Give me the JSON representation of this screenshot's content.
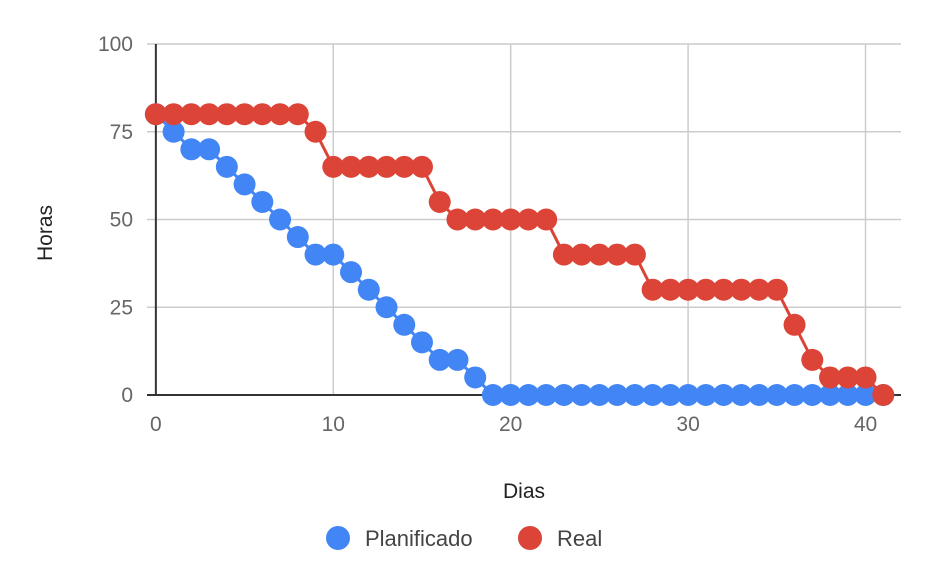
{
  "chart_data": {
    "type": "line",
    "xlabel": "Dias",
    "ylabel": "Horas",
    "xlim": [
      -0.5,
      42
    ],
    "ylim": [
      0,
      100
    ],
    "x_ticks": [
      0,
      10,
      20,
      30,
      40
    ],
    "y_ticks": [
      0,
      25,
      50,
      75,
      100
    ],
    "grid": true,
    "legend_position": "bottom",
    "x": [
      0,
      1,
      2,
      3,
      4,
      5,
      6,
      7,
      8,
      9,
      10,
      11,
      12,
      13,
      14,
      15,
      16,
      17,
      18,
      19,
      20,
      21,
      22,
      23,
      24,
      25,
      26,
      27,
      28,
      29,
      30,
      31,
      32,
      33,
      34,
      35,
      36,
      37,
      38,
      39,
      40,
      41
    ],
    "series": [
      {
        "name": "Planificado",
        "color": "#4285F4",
        "values": [
          80,
          75,
          70,
          70,
          65,
          60,
          55,
          50,
          45,
          40,
          40,
          35,
          30,
          25,
          20,
          15,
          10,
          10,
          5,
          0,
          0,
          0,
          0,
          0,
          0,
          0,
          0,
          0,
          0,
          0,
          0,
          0,
          0,
          0,
          0,
          0,
          0,
          0,
          0,
          0,
          0,
          0
        ]
      },
      {
        "name": "Real",
        "color": "#DB4437",
        "values": [
          80,
          80,
          80,
          80,
          80,
          80,
          80,
          80,
          80,
          75,
          65,
          65,
          65,
          65,
          65,
          65,
          55,
          50,
          50,
          50,
          50,
          50,
          50,
          40,
          40,
          40,
          40,
          40,
          30,
          30,
          30,
          30,
          30,
          30,
          30,
          30,
          20,
          10,
          5,
          5,
          5,
          0
        ]
      }
    ]
  }
}
